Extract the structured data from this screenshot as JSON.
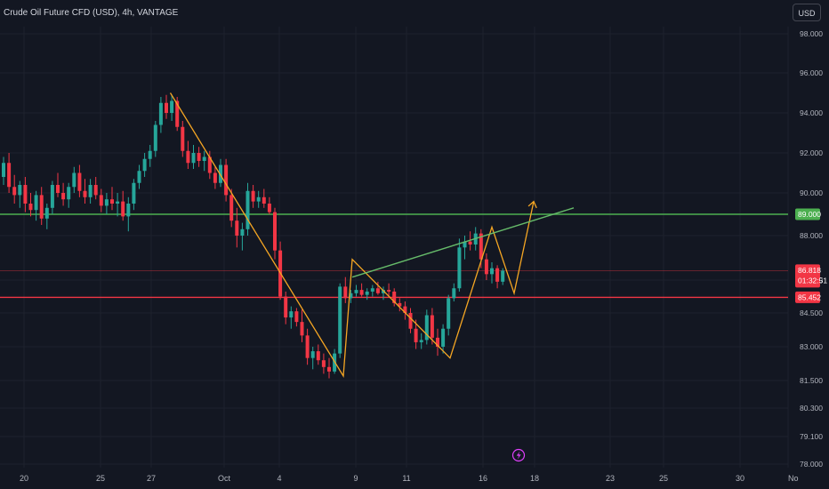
{
  "header": {
    "title": "Crude Oil Future CFD (USD), 4h, VANTAGE",
    "currency_button": "USD"
  },
  "colors": {
    "background": "#131722",
    "up": "#26a69a",
    "down": "#f23645",
    "green_line": "#4caf50",
    "red_line": "#f23645",
    "drawing": "#f5a623",
    "trendline": "#66bb6a",
    "lightning": "#e040fb"
  },
  "icons": {
    "event": "lightning-icon"
  },
  "chart_data": {
    "type": "candlestick",
    "title": "Crude Oil Future CFD (USD), 4h, VANTAGE",
    "y_axis_ticks": [
      "98.000",
      "96.000",
      "94.000",
      "92.000",
      "90.000",
      "88.000",
      "86.500",
      "84.500",
      "83.000",
      "81.500",
      "80.300",
      "79.100",
      "78.000"
    ],
    "x_axis_ticks": [
      "20",
      "25",
      "27",
      "Oct",
      "4",
      "9",
      "11",
      "16",
      "18",
      "23",
      "25",
      "30",
      "No"
    ],
    "price_labels": [
      {
        "id": "level-89",
        "text": "89.000",
        "color": "#4caf50"
      },
      {
        "id": "current",
        "text": "86.818",
        "sub": "01:32:51",
        "color": "#f23645"
      },
      {
        "id": "level-85",
        "text": "85.452",
        "color": "#f23645"
      }
    ],
    "horizontal_levels": [
      {
        "value": 89.0,
        "color": "#4caf50"
      },
      {
        "value": 85.452,
        "color": "#f23645"
      },
      {
        "value": 86.818,
        "color": "#f23645",
        "style": "thin"
      }
    ],
    "candles": [
      [
        90.8,
        91.8,
        90.4,
        91.5
      ],
      [
        91.5,
        92.0,
        90.0,
        90.3
      ],
      [
        90.3,
        90.9,
        89.5,
        89.9
      ],
      [
        89.9,
        90.6,
        89.3,
        90.4
      ],
      [
        90.4,
        90.8,
        89.1,
        89.5
      ],
      [
        89.5,
        90.0,
        88.9,
        89.2
      ],
      [
        89.2,
        90.1,
        88.7,
        89.9
      ],
      [
        89.9,
        90.3,
        88.5,
        88.8
      ],
      [
        88.8,
        89.5,
        88.3,
        89.3
      ],
      [
        89.3,
        90.6,
        89.0,
        90.4
      ],
      [
        90.4,
        91.0,
        89.8,
        90.0
      ],
      [
        90.0,
        90.5,
        89.4,
        89.7
      ],
      [
        89.7,
        90.5,
        89.3,
        90.3
      ],
      [
        90.3,
        91.3,
        90.0,
        91.0
      ],
      [
        91.0,
        91.4,
        89.8,
        90.1
      ],
      [
        90.1,
        90.7,
        89.5,
        89.8
      ],
      [
        89.8,
        90.7,
        89.5,
        90.4
      ],
      [
        90.4,
        90.8,
        89.7,
        89.9
      ],
      [
        89.9,
        90.2,
        89.1,
        89.4
      ],
      [
        89.4,
        90.0,
        89.0,
        89.7
      ],
      [
        89.7,
        90.3,
        89.2,
        89.5
      ],
      [
        89.5,
        90.0,
        88.9,
        89.6
      ],
      [
        89.6,
        90.1,
        88.7,
        88.9
      ],
      [
        88.9,
        89.8,
        88.2,
        89.5
      ],
      [
        89.5,
        90.7,
        89.2,
        90.5
      ],
      [
        90.5,
        91.4,
        90.2,
        91.1
      ],
      [
        91.1,
        92.0,
        90.8,
        91.7
      ],
      [
        91.7,
        92.4,
        91.3,
        92.1
      ],
      [
        92.1,
        93.6,
        91.8,
        93.4
      ],
      [
        93.4,
        94.8,
        93.0,
        94.5
      ],
      [
        94.5,
        94.9,
        93.7,
        94.0
      ],
      [
        94.0,
        94.9,
        93.6,
        94.6
      ],
      [
        94.6,
        94.8,
        93.1,
        93.3
      ],
      [
        93.3,
        93.6,
        91.8,
        92.1
      ],
      [
        92.1,
        92.6,
        91.2,
        91.5
      ],
      [
        91.5,
        92.4,
        91.2,
        92.0
      ],
      [
        92.0,
        92.3,
        91.3,
        91.6
      ],
      [
        91.6,
        92.1,
        91.1,
        91.8
      ],
      [
        91.8,
        92.1,
        90.7,
        91.0
      ],
      [
        91.0,
        91.3,
        90.2,
        90.5
      ],
      [
        90.5,
        91.7,
        90.3,
        91.4
      ],
      [
        91.4,
        91.7,
        89.6,
        89.9
      ],
      [
        89.9,
        90.2,
        88.4,
        88.7
      ],
      [
        88.7,
        89.3,
        87.6,
        88.0
      ],
      [
        88.0,
        88.6,
        87.5,
        88.3
      ],
      [
        88.3,
        90.5,
        88.0,
        90.1
      ],
      [
        90.1,
        90.4,
        89.3,
        89.6
      ],
      [
        89.6,
        90.1,
        89.3,
        89.8
      ],
      [
        89.8,
        90.2,
        89.3,
        89.5
      ],
      [
        89.5,
        89.8,
        89.0,
        89.1
      ],
      [
        89.1,
        89.3,
        87.2,
        87.5
      ],
      [
        87.5,
        87.8,
        85.3,
        85.5
      ],
      [
        85.5,
        85.8,
        84.0,
        84.3
      ],
      [
        84.3,
        84.9,
        83.8,
        84.6
      ],
      [
        84.6,
        84.8,
        83.9,
        84.1
      ],
      [
        84.1,
        84.7,
        83.2,
        83.5
      ],
      [
        83.5,
        83.8,
        82.2,
        82.5
      ],
      [
        82.5,
        83.0,
        82.0,
        82.8
      ],
      [
        82.8,
        83.1,
        82.2,
        82.4
      ],
      [
        82.4,
        82.7,
        81.8,
        82.1
      ],
      [
        82.1,
        82.5,
        81.6,
        81.9
      ],
      [
        81.9,
        82.9,
        81.8,
        82.7
      ],
      [
        82.7,
        86.3,
        82.5,
        86.1
      ],
      [
        86.1,
        86.6,
        85.1,
        85.4
      ],
      [
        85.4,
        85.9,
        85.1,
        85.7
      ],
      [
        85.7,
        86.2,
        85.5,
        85.9
      ],
      [
        85.9,
        86.3,
        85.5,
        85.6
      ],
      [
        85.6,
        86.0,
        85.3,
        85.8
      ],
      [
        85.8,
        86.2,
        85.5,
        86.0
      ],
      [
        86.0,
        86.4,
        85.6,
        85.7
      ],
      [
        85.7,
        86.1,
        85.3,
        85.9
      ],
      [
        85.9,
        86.3,
        85.5,
        85.8
      ],
      [
        85.8,
        86.0,
        84.9,
        85.1
      ],
      [
        85.1,
        85.4,
        84.6,
        84.9
      ],
      [
        84.9,
        85.2,
        84.2,
        84.5
      ],
      [
        84.5,
        84.8,
        83.6,
        83.8
      ],
      [
        83.8,
        84.2,
        82.9,
        83.2
      ],
      [
        83.2,
        83.6,
        82.9,
        83.3
      ],
      [
        83.3,
        84.7,
        83.1,
        84.4
      ],
      [
        84.4,
        84.8,
        83.1,
        83.4
      ],
      [
        83.4,
        83.8,
        82.6,
        83.0
      ],
      [
        83.0,
        84.0,
        82.7,
        83.8
      ],
      [
        83.8,
        85.6,
        83.5,
        85.4
      ],
      [
        85.4,
        86.3,
        85.2,
        86.0
      ],
      [
        86.0,
        87.9,
        85.8,
        87.6
      ],
      [
        87.6,
        88.0,
        87.2,
        87.8
      ],
      [
        87.8,
        88.2,
        87.5,
        87.7
      ],
      [
        87.7,
        88.4,
        87.5,
        88.1
      ],
      [
        88.1,
        88.3,
        86.9,
        87.2
      ],
      [
        87.2,
        87.4,
        86.5,
        86.7
      ],
      [
        86.7,
        87.1,
        86.3,
        86.9
      ],
      [
        86.9,
        87.0,
        86.0,
        86.4
      ],
      [
        86.4,
        86.9,
        86.2,
        86.818
      ]
    ],
    "drawings": {
      "zigzag": [
        [
          191.5,
          95.0
        ],
        [
          386,
          81.7
        ],
        [
          396,
          87.2
        ],
        [
          506,
          82.5
        ],
        [
          553,
          88.4
        ],
        [
          578,
          85.7
        ],
        [
          600,
          89.6
        ]
      ],
      "trendline": [
        [
          396,
          86.6
        ],
        [
          645,
          89.3
        ]
      ]
    }
  }
}
